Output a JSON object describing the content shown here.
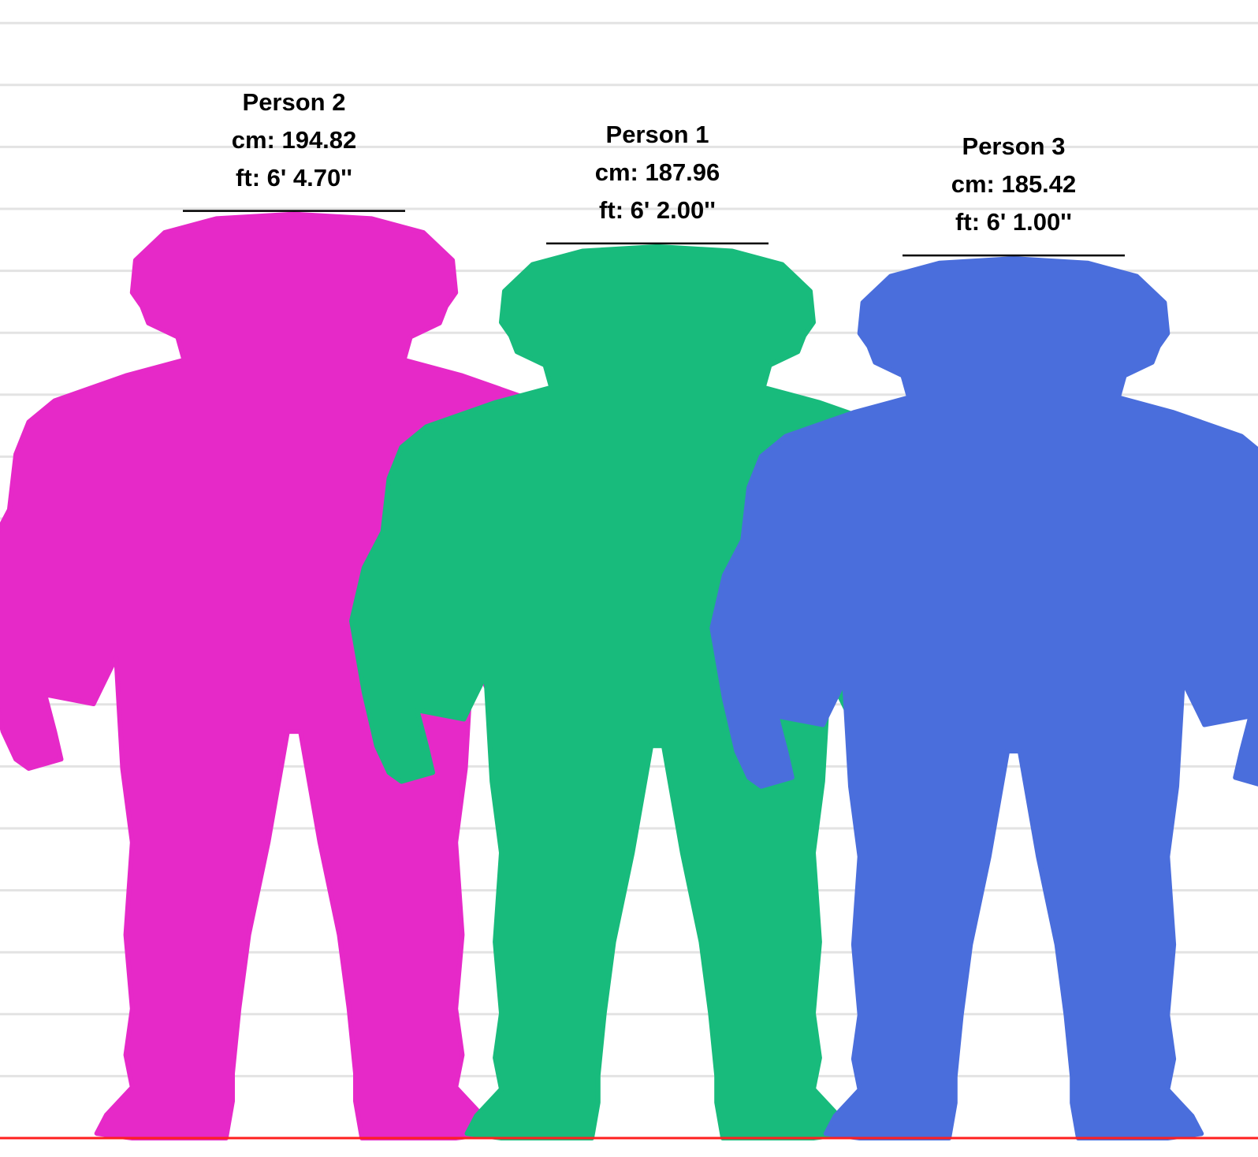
{
  "chart_data": {
    "type": "bar",
    "unit": "cm",
    "categories": [
      "Person 2",
      "Person 1",
      "Person 3"
    ],
    "values": [
      194.82,
      187.96,
      185.42
    ],
    "people": [
      {
        "name": "Person 2",
        "cm_label": "cm: 194.82",
        "ft_label": "ft: 6' 4.70''",
        "value_cm": 194.82,
        "color": "#e629c8"
      },
      {
        "name": "Person 1",
        "cm_label": "cm: 187.96",
        "ft_label": "ft: 6' 2.00''",
        "value_cm": 187.96,
        "color": "#18bb7c"
      },
      {
        "name": "Person 3",
        "cm_label": "cm: 185.42",
        "ft_label": "ft: 6' 1.00''",
        "value_cm": 185.42,
        "color": "#4a6edc"
      }
    ],
    "grid": true,
    "baseline_color": "#ff1f1f",
    "grid_color": "#e3e3e3"
  }
}
